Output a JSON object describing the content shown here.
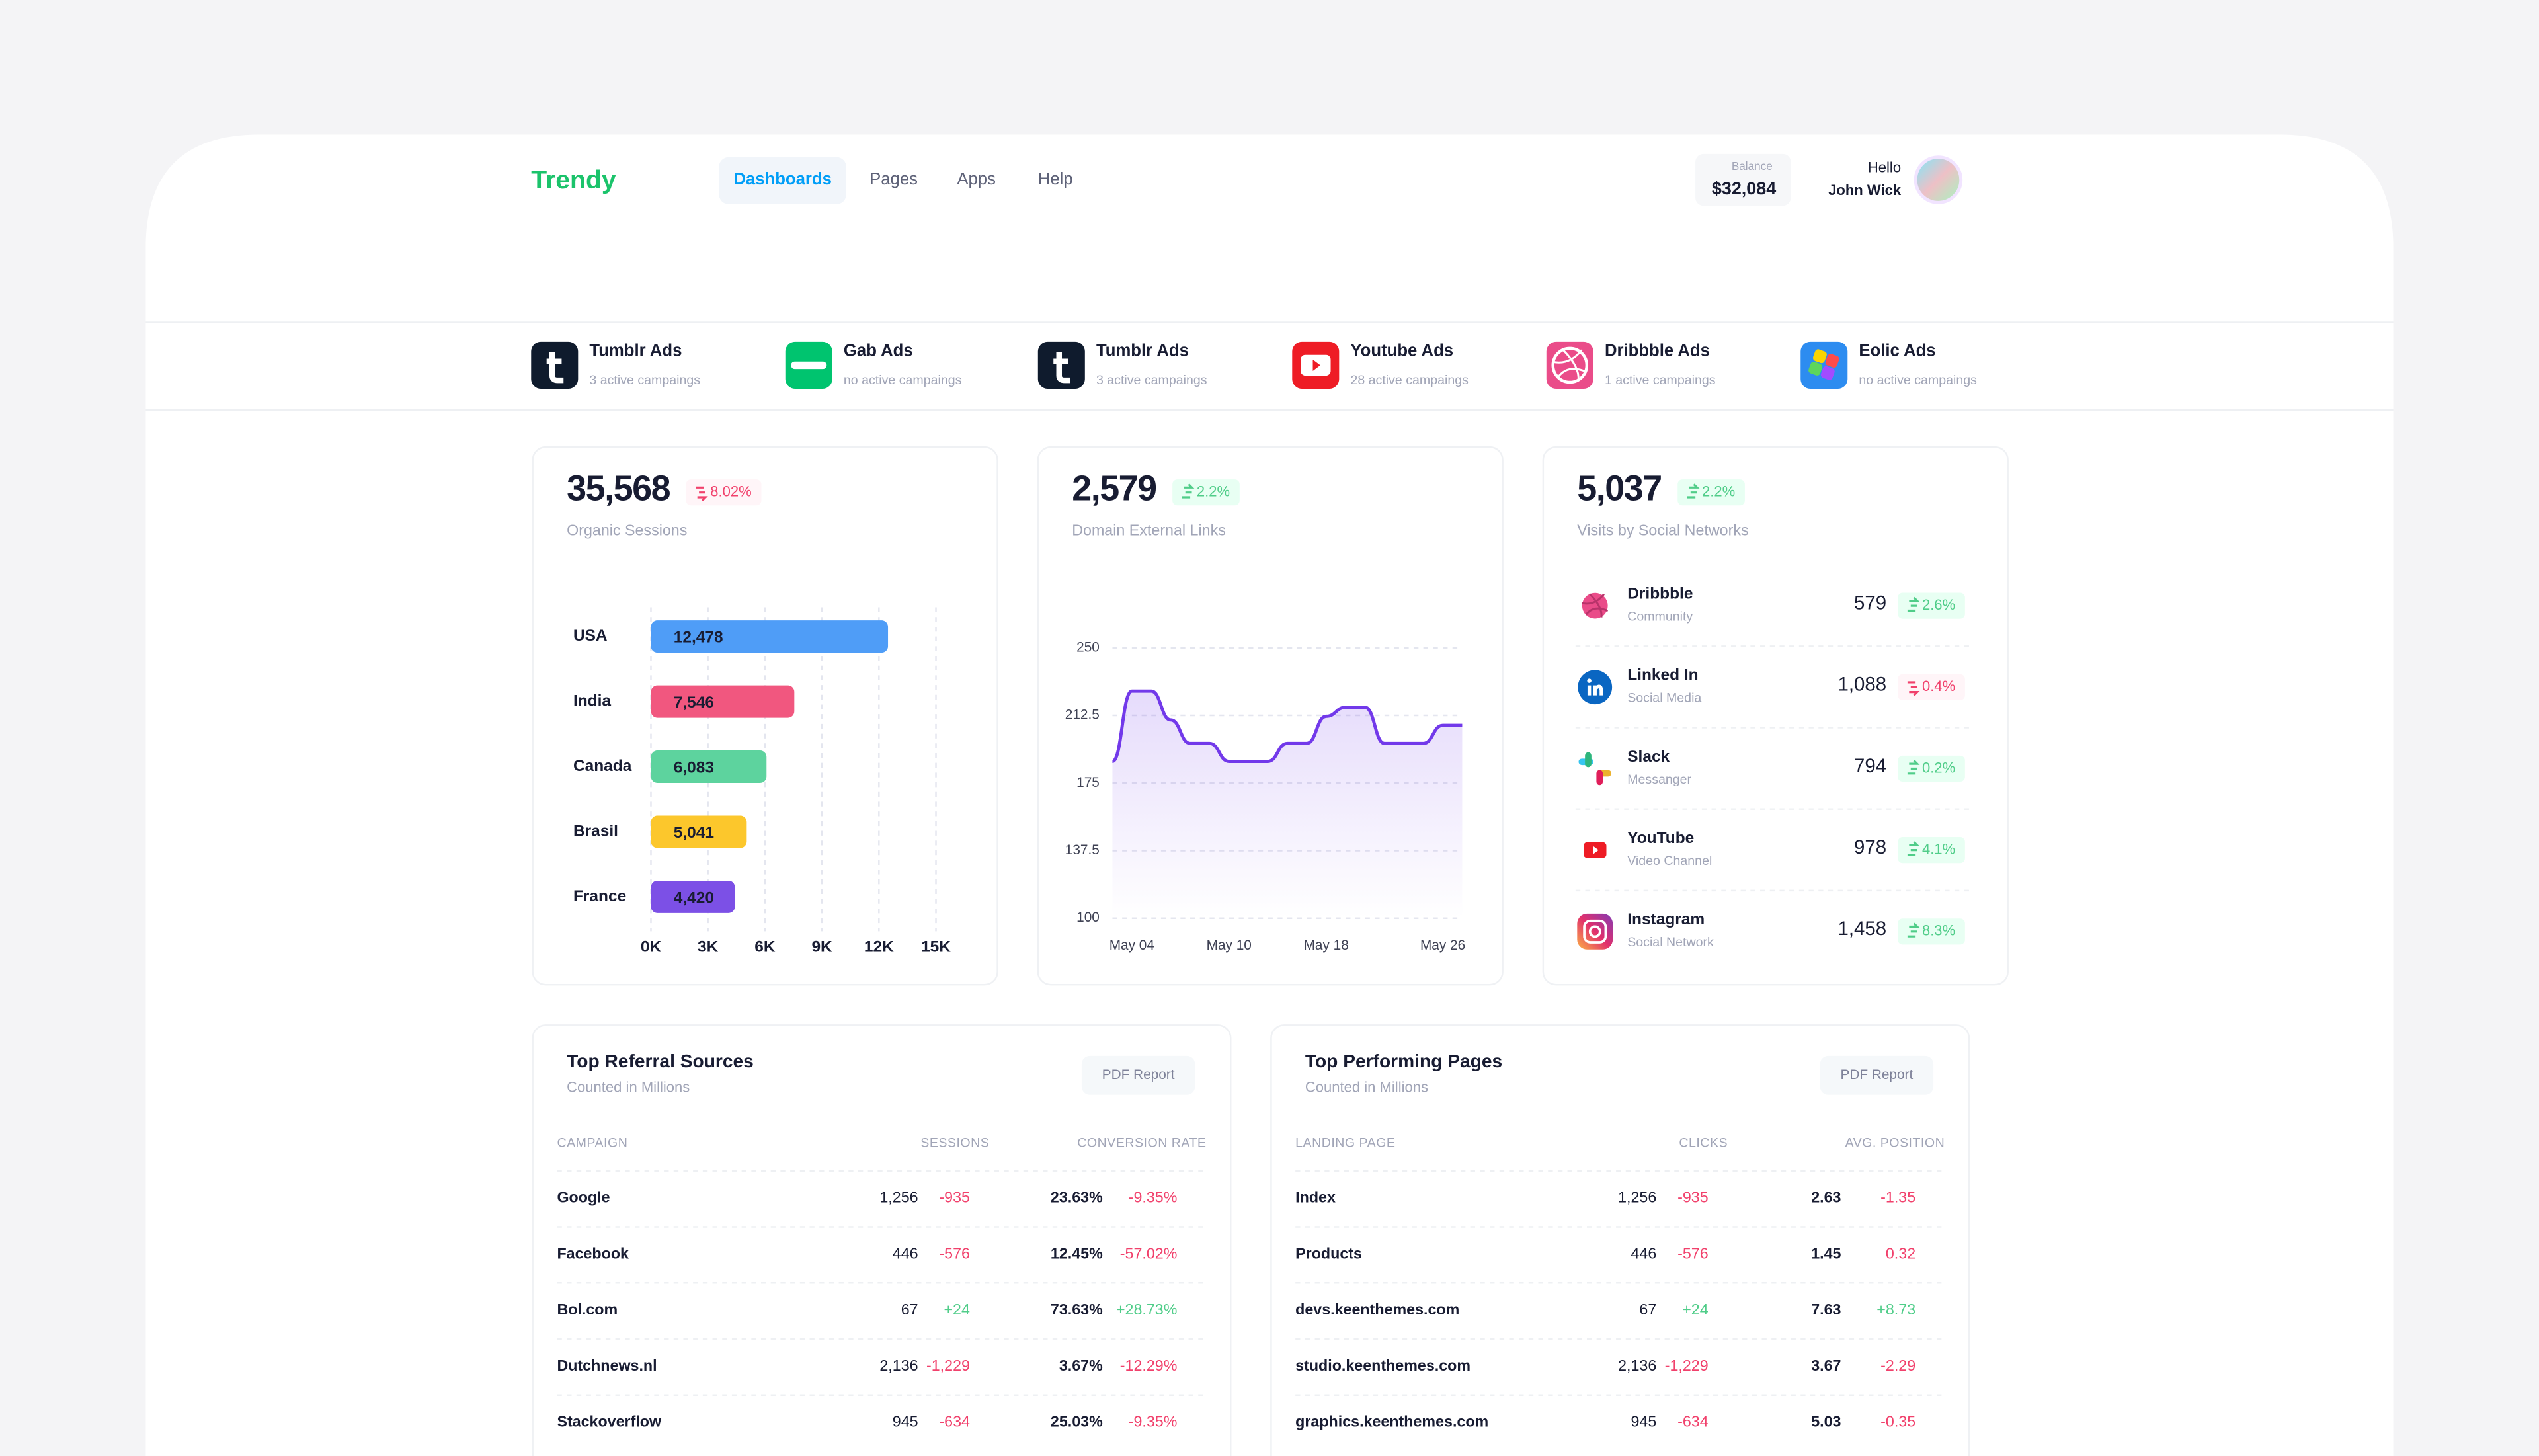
{
  "header": {
    "brand": "Trendy",
    "nav": [
      {
        "label": "Dashboards",
        "active": true
      },
      {
        "label": "Pages",
        "active": false
      },
      {
        "label": "Apps",
        "active": false
      },
      {
        "label": "Help",
        "active": false
      }
    ],
    "balance_label": "Balance",
    "balance": "$32,084",
    "greeting": "Hello",
    "user": "John Wick"
  },
  "campaigns": [
    {
      "icon": "tumblr",
      "title": "Tumblr Ads",
      "subtitle": "3 active campaings"
    },
    {
      "icon": "gab",
      "title": "Gab Ads",
      "subtitle": "no active campaings"
    },
    {
      "icon": "tumblr",
      "title": "Tumblr Ads",
      "subtitle": "3 active campaings"
    },
    {
      "icon": "youtube",
      "title": "Youtube Ads",
      "subtitle": "28 active campaings"
    },
    {
      "icon": "dribbble",
      "title": "Dribbble Ads",
      "subtitle": "1 active campaings"
    },
    {
      "icon": "eolic",
      "title": "Eolic Ads",
      "subtitle": "no active campaings"
    }
  ],
  "stats": [
    {
      "value": "35,568",
      "change": "8.02%",
      "trend": "down",
      "label": "Organic Sessions"
    },
    {
      "value": "2,579",
      "change": "2.2%",
      "trend": "up",
      "label": "Domain External Links"
    },
    {
      "value": "5,037",
      "change": "2.2%",
      "trend": "up",
      "label": "Visits by Social Networks"
    }
  ],
  "chart_data": [
    {
      "type": "bar",
      "categories": [
        "USA",
        "India",
        "Canada",
        "Brasil",
        "France"
      ],
      "values": [
        12478,
        7546,
        6083,
        5041,
        4420
      ],
      "value_labels": [
        "12,478",
        "7,546",
        "6,083",
        "5,041",
        "4,420"
      ],
      "colors": [
        "#4f9df7",
        "#f1577f",
        "#5dd39e",
        "#fcc72c",
        "#7c50e6"
      ],
      "xlim": [
        0,
        15000
      ],
      "xticks": [
        {
          "value": 0,
          "label": "0K"
        },
        {
          "value": 3000,
          "label": "3K"
        },
        {
          "value": 6000,
          "label": "6K"
        },
        {
          "value": 9000,
          "label": "9K"
        },
        {
          "value": 12000,
          "label": "12K"
        },
        {
          "value": 15000,
          "label": "15K"
        }
      ],
      "grid": true
    },
    {
      "type": "line",
      "categories": [
        null,
        "May 04",
        null,
        null,
        null,
        null,
        "May 10",
        null,
        null,
        null,
        null,
        "May 18",
        null,
        null,
        null,
        null,
        null,
        "May 26",
        null
      ],
      "values": [
        187,
        226,
        226,
        210,
        197,
        197,
        187,
        187,
        187,
        197,
        197,
        212,
        217,
        217,
        197,
        197,
        197,
        207,
        207
      ],
      "color": "#7239ea",
      "ylim": [
        100,
        250
      ],
      "yticks": [
        100,
        137.5,
        175,
        212.5,
        250
      ],
      "grid": true
    }
  ],
  "social": [
    {
      "icon": "dribbble",
      "name": "Dribbble",
      "type": "Community",
      "value": "579",
      "change": "2.6%",
      "trend": "up"
    },
    {
      "icon": "linkedin",
      "name": "Linked In",
      "type": "Social Media",
      "value": "1,088",
      "change": "0.4%",
      "trend": "down"
    },
    {
      "icon": "slack",
      "name": "Slack",
      "type": "Messanger",
      "value": "794",
      "change": "0.2%",
      "trend": "up"
    },
    {
      "icon": "youtube",
      "name": "YouTube",
      "type": "Video Channel",
      "value": "978",
      "change": "4.1%",
      "trend": "up"
    },
    {
      "icon": "instagram",
      "name": "Instagram",
      "type": "Social Network",
      "value": "1,458",
      "change": "8.3%",
      "trend": "up"
    }
  ],
  "tables": [
    {
      "title": "Top Referral Sources",
      "subtitle": "Counted in Millions",
      "button": "PDF Report",
      "columns": [
        "CAMPAIGN",
        "SESSIONS",
        "CONVERSION RATE"
      ],
      "rows": [
        [
          "Google",
          "1,256",
          "-935",
          "23.63%",
          "-9.35%"
        ],
        [
          "Facebook",
          "446",
          "-576",
          "12.45%",
          "-57.02%"
        ],
        [
          "Bol.com",
          "67",
          "+24",
          "73.63%",
          "+28.73%"
        ],
        [
          "Dutchnews.nl",
          "2,136",
          "-1,229",
          "3.67%",
          "-12.29%"
        ],
        [
          "Stackoverflow",
          "945",
          "-634",
          "25.03%",
          "-9.35%"
        ]
      ]
    },
    {
      "title": "Top Performing Pages",
      "subtitle": "Counted in Millions",
      "button": "PDF Report",
      "columns": [
        "LANDING PAGE",
        "CLICKS",
        "AVG. POSITION"
      ],
      "rows": [
        [
          "Index",
          "1,256",
          "-935",
          "2.63",
          "-1.35"
        ],
        [
          "Products",
          "446",
          "-576",
          "1.45",
          "0.32"
        ],
        [
          "devs.keenthemes.com",
          "67",
          "+24",
          "7.63",
          "+8.73"
        ],
        [
          "studio.keenthemes.com",
          "2,136",
          "-1,229",
          "3.67",
          "-2.29"
        ],
        [
          "graphics.keenthemes.com",
          "945",
          "-634",
          "5.03",
          "-0.35"
        ]
      ]
    }
  ]
}
